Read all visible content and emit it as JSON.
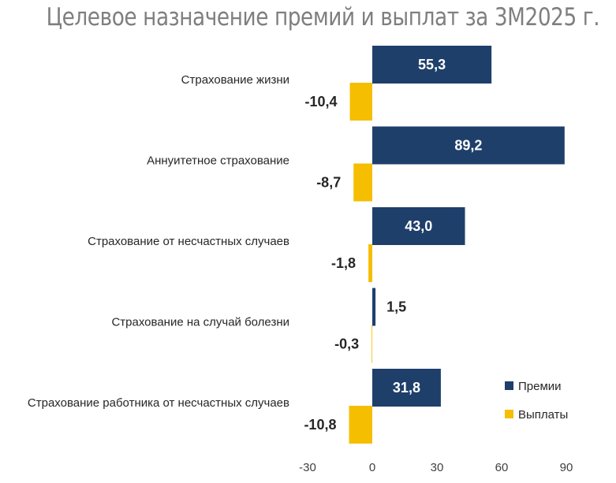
{
  "chart_data": {
    "type": "bar",
    "orientation": "horizontal",
    "title": "Целевое назначение премий и выплат за 3М2025 г.",
    "categories": [
      "Страхование жизни",
      "Аннуитетное страхование",
      "Страхование от несчастных случаев",
      "Страхование на случай болезни",
      "Страхование работника от несчастных случаев"
    ],
    "series": [
      {
        "name": "Премии",
        "color": "#1f3f6b",
        "values": [
          55.3,
          89.2,
          43.0,
          1.5,
          31.8
        ],
        "labels": [
          "55,3",
          "89,2",
          "43,0",
          "1,5",
          "31,8"
        ]
      },
      {
        "name": "Выплаты",
        "color": "#f5be00",
        "values": [
          -10.4,
          -8.7,
          -1.8,
          -0.3,
          -10.8
        ],
        "labels": [
          "-10,4",
          "-8,7",
          "-1,8",
          "-0,3",
          "-10,8"
        ]
      }
    ],
    "xlim": [
      -30,
      90
    ],
    "xticks": [
      -30,
      0,
      30,
      60,
      90
    ],
    "xtick_labels": [
      "-30",
      "0",
      "30",
      "60",
      "90"
    ],
    "grid": false,
    "legend_position": "bottom-right"
  }
}
